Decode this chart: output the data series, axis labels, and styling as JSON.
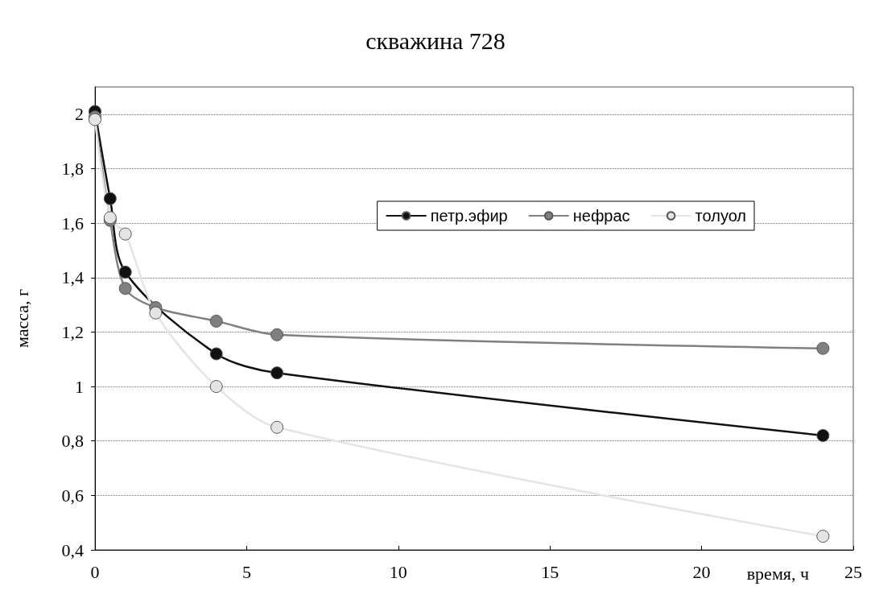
{
  "chart_data": {
    "type": "line",
    "title": "скважина 728",
    "xlabel": "время, ч",
    "ylabel": "масса, г",
    "xlim": [
      0,
      25
    ],
    "xticks": [
      0,
      5,
      10,
      15,
      20,
      25
    ],
    "ylim": [
      0.4,
      2.1
    ],
    "yticks": [
      {
        "value": 0.4,
        "label": "0,4"
      },
      {
        "value": 0.6,
        "label": "0,6"
      },
      {
        "value": 0.8,
        "label": "0,8"
      },
      {
        "value": 1,
        "label": "1"
      },
      {
        "value": 1.2,
        "label": "1,2"
      },
      {
        "value": 1.4,
        "label": "1,4"
      },
      {
        "value": 1.6,
        "label": "1,6"
      },
      {
        "value": 1.8,
        "label": "1,8"
      },
      {
        "value": 2,
        "label": "2"
      }
    ],
    "grid": "y",
    "legend": "top right",
    "marker": "circle",
    "x": [
      0,
      0.5,
      1,
      2,
      4,
      6,
      24
    ],
    "series": [
      {
        "name": "петр.эфир",
        "color": "#111111",
        "x": [
          0,
          0.5,
          1,
          4,
          6,
          24
        ],
        "values": [
          2.01,
          1.69,
          1.42,
          1.12,
          1.05,
          0.82
        ]
      },
      {
        "name": "нефрас",
        "color": "#808080",
        "values": [
          1.99,
          1.61,
          1.36,
          1.29,
          1.24,
          1.19,
          1.14
        ]
      },
      {
        "name": "толуол",
        "color": "#e4e4e4",
        "values": [
          1.98,
          1.62,
          1.56,
          1.27,
          1.0,
          0.85,
          0.45
        ]
      }
    ]
  }
}
